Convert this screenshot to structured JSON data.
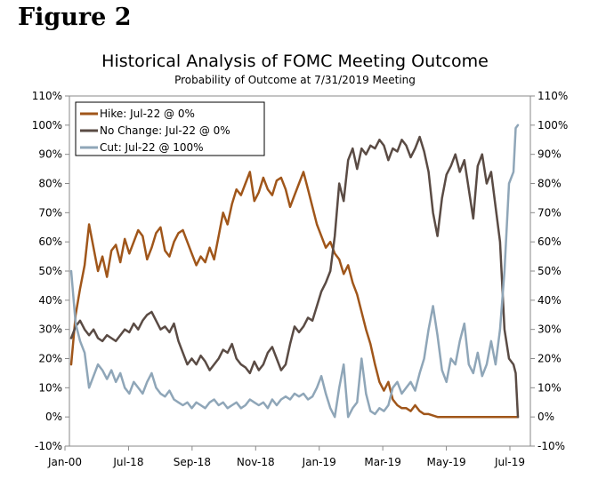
{
  "figure": {
    "label": "Figure 2"
  },
  "colors": {
    "hike": "#A0561A",
    "no_change": "#5A4B44",
    "cut": "#8FA6B8",
    "axis": "#8a8a8a"
  },
  "chart_data": {
    "type": "line",
    "title": "Historical Analysis of FOMC Meeting Outcome",
    "subtitle": "Probability of Outcome at 7/31/2019 Meeting",
    "xlabel": "",
    "ylabel": "",
    "x_tick_labels": [
      "Jan-00",
      "Jul-18",
      "Sep-18",
      "Nov-18",
      "Jan-19",
      "Mar-19",
      "May-19",
      "Jul-19"
    ],
    "y_tick_labels": [
      "-10%",
      "0%",
      "10%",
      "20%",
      "30%",
      "40%",
      "50%",
      "60%",
      "70%",
      "80%",
      "90%",
      "100%",
      "110%"
    ],
    "ylim": [
      -10,
      110
    ],
    "x_range": [
      0,
      100
    ],
    "legend": {
      "position": "top-left",
      "entries": [
        "Hike: Jul-22 @ 0%",
        "No Change: Jul-22 @ 0%",
        "Cut: Jul-22 @ 100%"
      ]
    },
    "series": [
      {
        "name": "Hike: Jul-22 @ 0%",
        "key": "hike",
        "points": [
          [
            0,
            18
          ],
          [
            1,
            35
          ],
          [
            2,
            44
          ],
          [
            3,
            52
          ],
          [
            4,
            66
          ],
          [
            5,
            58
          ],
          [
            6,
            50
          ],
          [
            7,
            55
          ],
          [
            8,
            48
          ],
          [
            9,
            57
          ],
          [
            10,
            59
          ],
          [
            11,
            53
          ],
          [
            12,
            61
          ],
          [
            13,
            56
          ],
          [
            14,
            60
          ],
          [
            15,
            64
          ],
          [
            16,
            62
          ],
          [
            17,
            54
          ],
          [
            18,
            58
          ],
          [
            19,
            63
          ],
          [
            20,
            65
          ],
          [
            21,
            57
          ],
          [
            22,
            55
          ],
          [
            23,
            60
          ],
          [
            24,
            63
          ],
          [
            25,
            64
          ],
          [
            26,
            60
          ],
          [
            27,
            56
          ],
          [
            28,
            52
          ],
          [
            29,
            55
          ],
          [
            30,
            53
          ],
          [
            31,
            58
          ],
          [
            32,
            54
          ],
          [
            33,
            62
          ],
          [
            34,
            70
          ],
          [
            35,
            66
          ],
          [
            36,
            73
          ],
          [
            37,
            78
          ],
          [
            38,
            76
          ],
          [
            39,
            80
          ],
          [
            40,
            84
          ],
          [
            41,
            74
          ],
          [
            42,
            77
          ],
          [
            43,
            82
          ],
          [
            44,
            78
          ],
          [
            45,
            76
          ],
          [
            46,
            81
          ],
          [
            47,
            82
          ],
          [
            48,
            78
          ],
          [
            49,
            72
          ],
          [
            50,
            76
          ],
          [
            51,
            80
          ],
          [
            52,
            84
          ],
          [
            53,
            78
          ],
          [
            54,
            72
          ],
          [
            55,
            66
          ],
          [
            56,
            62
          ],
          [
            57,
            58
          ],
          [
            58,
            60
          ],
          [
            59,
            56
          ],
          [
            60,
            54
          ],
          [
            61,
            49
          ],
          [
            62,
            52
          ],
          [
            63,
            46
          ],
          [
            64,
            42
          ],
          [
            65,
            36
          ],
          [
            66,
            30
          ],
          [
            67,
            25
          ],
          [
            68,
            18
          ],
          [
            69,
            12
          ],
          [
            70,
            9
          ],
          [
            71,
            12
          ],
          [
            72,
            6
          ],
          [
            73,
            4
          ],
          [
            74,
            3
          ],
          [
            75,
            3
          ],
          [
            76,
            2
          ],
          [
            77,
            4
          ],
          [
            78,
            2
          ],
          [
            79,
            1
          ],
          [
            80,
            1
          ],
          [
            82,
            0
          ],
          [
            86,
            0
          ],
          [
            90,
            0
          ],
          [
            94,
            0
          ],
          [
            98,
            0
          ],
          [
            100,
            0
          ]
        ]
      },
      {
        "name": "No Change: Jul-22 @ 0%",
        "key": "no_change",
        "points": [
          [
            0,
            27
          ],
          [
            1,
            31
          ],
          [
            2,
            33
          ],
          [
            3,
            30
          ],
          [
            4,
            28
          ],
          [
            5,
            30
          ],
          [
            6,
            27
          ],
          [
            7,
            26
          ],
          [
            8,
            28
          ],
          [
            9,
            27
          ],
          [
            10,
            26
          ],
          [
            11,
            28
          ],
          [
            12,
            30
          ],
          [
            13,
            29
          ],
          [
            14,
            32
          ],
          [
            15,
            30
          ],
          [
            16,
            33
          ],
          [
            17,
            35
          ],
          [
            18,
            36
          ],
          [
            19,
            33
          ],
          [
            20,
            30
          ],
          [
            21,
            31
          ],
          [
            22,
            29
          ],
          [
            23,
            32
          ],
          [
            24,
            26
          ],
          [
            25,
            22
          ],
          [
            26,
            18
          ],
          [
            27,
            20
          ],
          [
            28,
            18
          ],
          [
            29,
            21
          ],
          [
            30,
            19
          ],
          [
            31,
            16
          ],
          [
            32,
            18
          ],
          [
            33,
            20
          ],
          [
            34,
            23
          ],
          [
            35,
            22
          ],
          [
            36,
            25
          ],
          [
            37,
            20
          ],
          [
            38,
            18
          ],
          [
            39,
            17
          ],
          [
            40,
            15
          ],
          [
            41,
            19
          ],
          [
            42,
            16
          ],
          [
            43,
            18
          ],
          [
            44,
            22
          ],
          [
            45,
            24
          ],
          [
            46,
            20
          ],
          [
            47,
            16
          ],
          [
            48,
            18
          ],
          [
            49,
            25
          ],
          [
            50,
            31
          ],
          [
            51,
            29
          ],
          [
            52,
            31
          ],
          [
            53,
            34
          ],
          [
            54,
            33
          ],
          [
            55,
            38
          ],
          [
            56,
            43
          ],
          [
            57,
            46
          ],
          [
            58,
            50
          ],
          [
            59,
            62
          ],
          [
            60,
            80
          ],
          [
            61,
            74
          ],
          [
            62,
            88
          ],
          [
            63,
            92
          ],
          [
            64,
            85
          ],
          [
            65,
            92
          ],
          [
            66,
            90
          ],
          [
            67,
            93
          ],
          [
            68,
            92
          ],
          [
            69,
            95
          ],
          [
            70,
            93
          ],
          [
            71,
            88
          ],
          [
            72,
            92
          ],
          [
            73,
            91
          ],
          [
            74,
            95
          ],
          [
            75,
            93
          ],
          [
            76,
            89
          ],
          [
            77,
            92
          ],
          [
            78,
            96
          ],
          [
            79,
            91
          ],
          [
            80,
            84
          ],
          [
            81,
            70
          ],
          [
            82,
            62
          ],
          [
            83,
            75
          ],
          [
            84,
            83
          ],
          [
            85,
            86
          ],
          [
            86,
            90
          ],
          [
            87,
            84
          ],
          [
            88,
            88
          ],
          [
            89,
            78
          ],
          [
            90,
            68
          ],
          [
            91,
            86
          ],
          [
            92,
            90
          ],
          [
            93,
            80
          ],
          [
            94,
            84
          ],
          [
            95,
            72
          ],
          [
            96,
            60
          ],
          [
            97,
            30
          ],
          [
            98,
            20
          ],
          [
            99,
            18
          ],
          [
            99.5,
            15
          ],
          [
            100,
            0
          ]
        ]
      },
      {
        "name": "Cut: Jul-22 @ 100%",
        "key": "cut",
        "points": [
          [
            0,
            50
          ],
          [
            1,
            32
          ],
          [
            2,
            26
          ],
          [
            3,
            22
          ],
          [
            4,
            10
          ],
          [
            5,
            14
          ],
          [
            6,
            18
          ],
          [
            7,
            16
          ],
          [
            8,
            13
          ],
          [
            9,
            16
          ],
          [
            10,
            12
          ],
          [
            11,
            15
          ],
          [
            12,
            10
          ],
          [
            13,
            8
          ],
          [
            14,
            12
          ],
          [
            15,
            10
          ],
          [
            16,
            8
          ],
          [
            17,
            12
          ],
          [
            18,
            15
          ],
          [
            19,
            10
          ],
          [
            20,
            8
          ],
          [
            21,
            7
          ],
          [
            22,
            9
          ],
          [
            23,
            6
          ],
          [
            24,
            5
          ],
          [
            25,
            4
          ],
          [
            26,
            5
          ],
          [
            27,
            3
          ],
          [
            28,
            5
          ],
          [
            29,
            4
          ],
          [
            30,
            3
          ],
          [
            31,
            5
          ],
          [
            32,
            6
          ],
          [
            33,
            4
          ],
          [
            34,
            5
          ],
          [
            35,
            3
          ],
          [
            36,
            4
          ],
          [
            37,
            5
          ],
          [
            38,
            3
          ],
          [
            39,
            4
          ],
          [
            40,
            6
          ],
          [
            41,
            5
          ],
          [
            42,
            4
          ],
          [
            43,
            5
          ],
          [
            44,
            3
          ],
          [
            45,
            6
          ],
          [
            46,
            4
          ],
          [
            47,
            6
          ],
          [
            48,
            7
          ],
          [
            49,
            6
          ],
          [
            50,
            8
          ],
          [
            51,
            7
          ],
          [
            52,
            8
          ],
          [
            53,
            6
          ],
          [
            54,
            7
          ],
          [
            55,
            10
          ],
          [
            56,
            14
          ],
          [
            57,
            8
          ],
          [
            58,
            3
          ],
          [
            59,
            0
          ],
          [
            60,
            10
          ],
          [
            61,
            18
          ],
          [
            62,
            0
          ],
          [
            63,
            3
          ],
          [
            64,
            5
          ],
          [
            65,
            20
          ],
          [
            66,
            8
          ],
          [
            67,
            2
          ],
          [
            68,
            1
          ],
          [
            69,
            3
          ],
          [
            70,
            2
          ],
          [
            71,
            4
          ],
          [
            72,
            10
          ],
          [
            73,
            12
          ],
          [
            74,
            8
          ],
          [
            75,
            10
          ],
          [
            76,
            12
          ],
          [
            77,
            9
          ],
          [
            78,
            15
          ],
          [
            79,
            20
          ],
          [
            80,
            30
          ],
          [
            81,
            38
          ],
          [
            82,
            28
          ],
          [
            83,
            16
          ],
          [
            84,
            12
          ],
          [
            85,
            20
          ],
          [
            86,
            18
          ],
          [
            87,
            26
          ],
          [
            88,
            32
          ],
          [
            89,
            18
          ],
          [
            90,
            15
          ],
          [
            91,
            22
          ],
          [
            92,
            14
          ],
          [
            93,
            18
          ],
          [
            94,
            26
          ],
          [
            95,
            18
          ],
          [
            96,
            30
          ],
          [
            97,
            50
          ],
          [
            98,
            80
          ],
          [
            99,
            84
          ],
          [
            99.5,
            99
          ],
          [
            100,
            100
          ]
        ]
      }
    ]
  }
}
